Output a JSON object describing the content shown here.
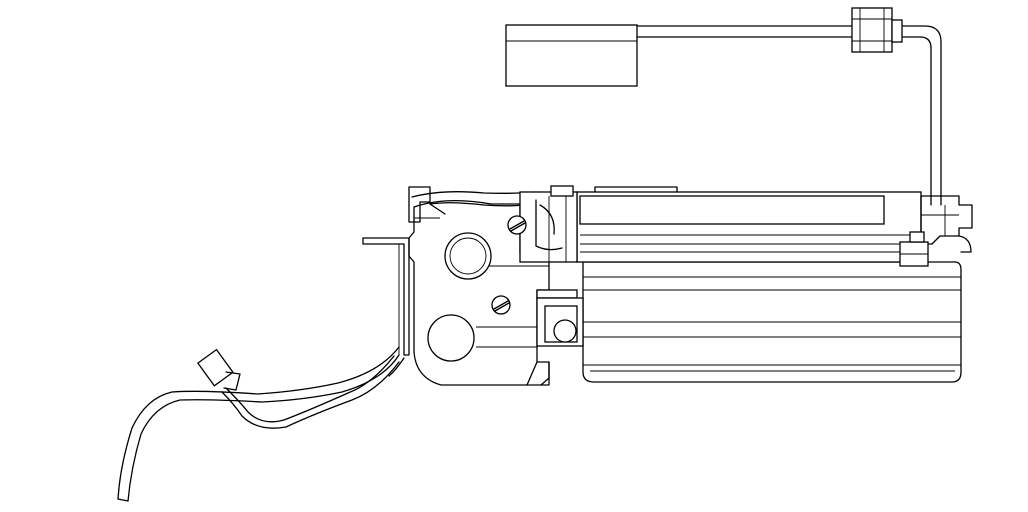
{
  "drawing": {
    "subject": "mechanical-assembly",
    "style": "monochrome line art",
    "colors": {
      "background": "#ffffff",
      "line": "#000000"
    }
  }
}
